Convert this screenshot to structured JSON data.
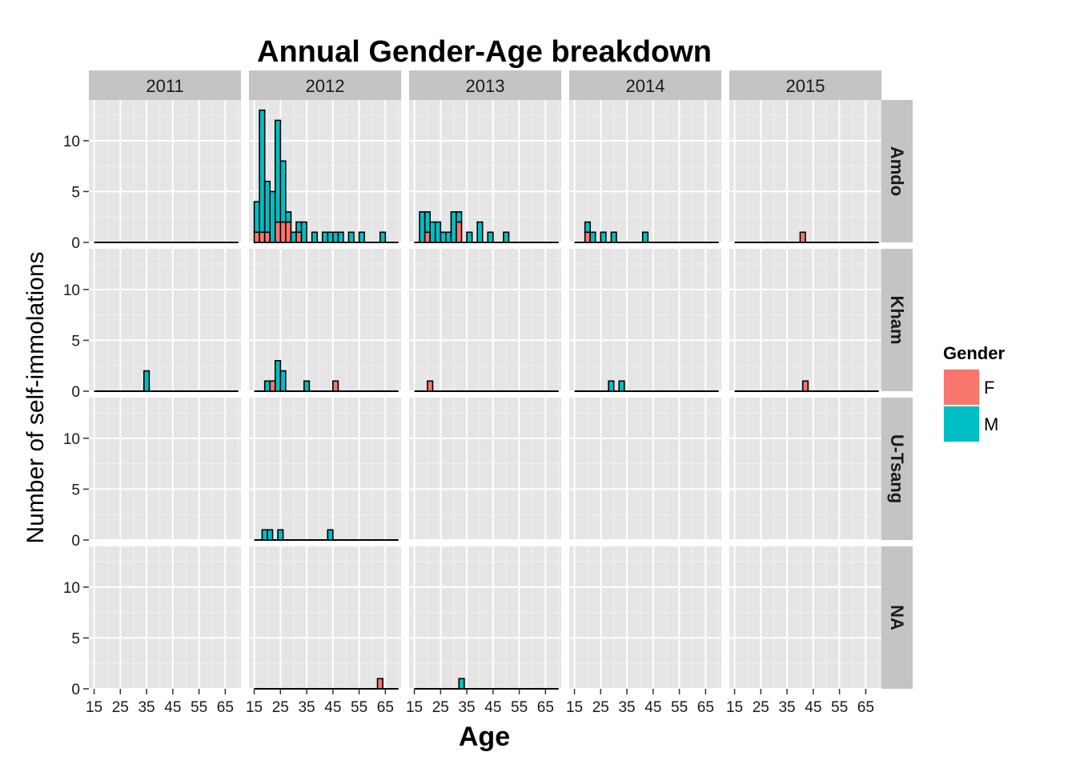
{
  "chart_data": {
    "type": "bar",
    "title": "Annual Gender-Age breakdown",
    "xlabel": "Age",
    "ylabel": "Number of self-immolations",
    "xlim": [
      13,
      71
    ],
    "ylim": [
      0,
      14
    ],
    "x_ticks": [
      15,
      25,
      35,
      45,
      55,
      65
    ],
    "y_ticks": [
      0,
      5,
      10
    ],
    "bin_width": 2,
    "stacked": true,
    "grid": true,
    "legend_position": "right",
    "legend": {
      "title": "Gender",
      "entries": [
        {
          "key": "F",
          "label": "F",
          "color": "#F8766D"
        },
        {
          "key": "M",
          "label": "M",
          "color": "#00BFC4"
        }
      ]
    },
    "columns": [
      "2011",
      "2012",
      "2013",
      "2014",
      "2015"
    ],
    "rows": [
      "Amdo",
      "Kham",
      "U-Tsang",
      "NA"
    ],
    "panels": [
      {
        "year": "2011",
        "region": "Amdo",
        "baseline": [
          15,
          70
        ],
        "bins": []
      },
      {
        "year": "2012",
        "region": "Amdo",
        "baseline": [
          15,
          70
        ],
        "bins": [
          {
            "x": 16,
            "F": 1,
            "M": 3
          },
          {
            "x": 18,
            "F": 1,
            "M": 12
          },
          {
            "x": 20,
            "F": 1,
            "M": 5
          },
          {
            "x": 22,
            "F": 0,
            "M": 5
          },
          {
            "x": 24,
            "F": 2,
            "M": 10
          },
          {
            "x": 26,
            "F": 2,
            "M": 6
          },
          {
            "x": 28,
            "F": 2,
            "M": 1
          },
          {
            "x": 30,
            "F": 0,
            "M": 1
          },
          {
            "x": 32,
            "F": 1,
            "M": 1
          },
          {
            "x": 34,
            "F": 0,
            "M": 2
          },
          {
            "x": 38,
            "F": 0,
            "M": 1
          },
          {
            "x": 42,
            "F": 0,
            "M": 1
          },
          {
            "x": 44,
            "F": 0,
            "M": 1
          },
          {
            "x": 46,
            "F": 0,
            "M": 1
          },
          {
            "x": 48,
            "F": 0,
            "M": 1
          },
          {
            "x": 52,
            "F": 0,
            "M": 1
          },
          {
            "x": 56,
            "F": 0,
            "M": 1
          },
          {
            "x": 64,
            "F": 0,
            "M": 1
          }
        ]
      },
      {
        "year": "2013",
        "region": "Amdo",
        "baseline": [
          15,
          70
        ],
        "bins": [
          {
            "x": 18,
            "F": 0,
            "M": 3
          },
          {
            "x": 20,
            "F": 1,
            "M": 2
          },
          {
            "x": 22,
            "F": 0,
            "M": 2
          },
          {
            "x": 24,
            "F": 0,
            "M": 2
          },
          {
            "x": 26,
            "F": 0,
            "M": 1
          },
          {
            "x": 28,
            "F": 0,
            "M": 1
          },
          {
            "x": 30,
            "F": 0,
            "M": 3
          },
          {
            "x": 32,
            "F": 2,
            "M": 1
          },
          {
            "x": 36,
            "F": 0,
            "M": 1
          },
          {
            "x": 40,
            "F": 0,
            "M": 2
          },
          {
            "x": 44,
            "F": 0,
            "M": 1
          },
          {
            "x": 50,
            "F": 0,
            "M": 1
          }
        ]
      },
      {
        "year": "2014",
        "region": "Amdo",
        "baseline": [
          15,
          70
        ],
        "bins": [
          {
            "x": 20,
            "F": 1,
            "M": 1
          },
          {
            "x": 22,
            "F": 0,
            "M": 1
          },
          {
            "x": 26,
            "F": 0,
            "M": 1
          },
          {
            "x": 30,
            "F": 0,
            "M": 1
          },
          {
            "x": 42,
            "F": 0,
            "M": 1
          }
        ]
      },
      {
        "year": "2015",
        "region": "Amdo",
        "baseline": [
          15,
          70
        ],
        "bins": [
          {
            "x": 41,
            "F": 1,
            "M": 0
          }
        ]
      },
      {
        "year": "2011",
        "region": "Kham",
        "baseline": [
          15,
          70
        ],
        "bins": [
          {
            "x": 35,
            "F": 0,
            "M": 2
          }
        ]
      },
      {
        "year": "2012",
        "region": "Kham",
        "baseline": [
          15,
          70
        ],
        "bins": [
          {
            "x": 20,
            "F": 0,
            "M": 1
          },
          {
            "x": 22,
            "F": 1,
            "M": 0
          },
          {
            "x": 24,
            "F": 0,
            "M": 3
          },
          {
            "x": 26,
            "F": 0,
            "M": 2
          },
          {
            "x": 35,
            "F": 0,
            "M": 1
          },
          {
            "x": 46,
            "F": 1,
            "M": 0
          }
        ]
      },
      {
        "year": "2013",
        "region": "Kham",
        "baseline": [
          15,
          70
        ],
        "bins": [
          {
            "x": 21,
            "F": 1,
            "M": 0
          }
        ]
      },
      {
        "year": "2014",
        "region": "Kham",
        "baseline": [
          15,
          70
        ],
        "bins": [
          {
            "x": 29,
            "F": 0,
            "M": 1
          },
          {
            "x": 33,
            "F": 0,
            "M": 1
          }
        ]
      },
      {
        "year": "2015",
        "region": "Kham",
        "baseline": [
          15,
          70
        ],
        "bins": [
          {
            "x": 42,
            "F": 1,
            "M": 0
          }
        ]
      },
      {
        "year": "2011",
        "region": "U-Tsang",
        "baseline": null,
        "bins": []
      },
      {
        "year": "2012",
        "region": "U-Tsang",
        "baseline": [
          15,
          70
        ],
        "bins": [
          {
            "x": 19,
            "F": 0,
            "M": 1
          },
          {
            "x": 21,
            "F": 0,
            "M": 1
          },
          {
            "x": 25,
            "F": 0,
            "M": 1
          },
          {
            "x": 44,
            "F": 0,
            "M": 1
          }
        ]
      },
      {
        "year": "2013",
        "region": "U-Tsang",
        "baseline": null,
        "bins": []
      },
      {
        "year": "2014",
        "region": "U-Tsang",
        "baseline": null,
        "bins": []
      },
      {
        "year": "2015",
        "region": "U-Tsang",
        "baseline": null,
        "bins": []
      },
      {
        "year": "2011",
        "region": "NA",
        "baseline": null,
        "bins": []
      },
      {
        "year": "2012",
        "region": "NA",
        "baseline": [
          15,
          70
        ],
        "bins": [
          {
            "x": 63,
            "F": 1,
            "M": 0
          }
        ]
      },
      {
        "year": "2013",
        "region": "NA",
        "baseline": [
          15,
          70
        ],
        "bins": [
          {
            "x": 33,
            "F": 0,
            "M": 1
          }
        ]
      },
      {
        "year": "2014",
        "region": "NA",
        "baseline": null,
        "bins": []
      },
      {
        "year": "2015",
        "region": "NA",
        "baseline": null,
        "bins": []
      }
    ]
  }
}
